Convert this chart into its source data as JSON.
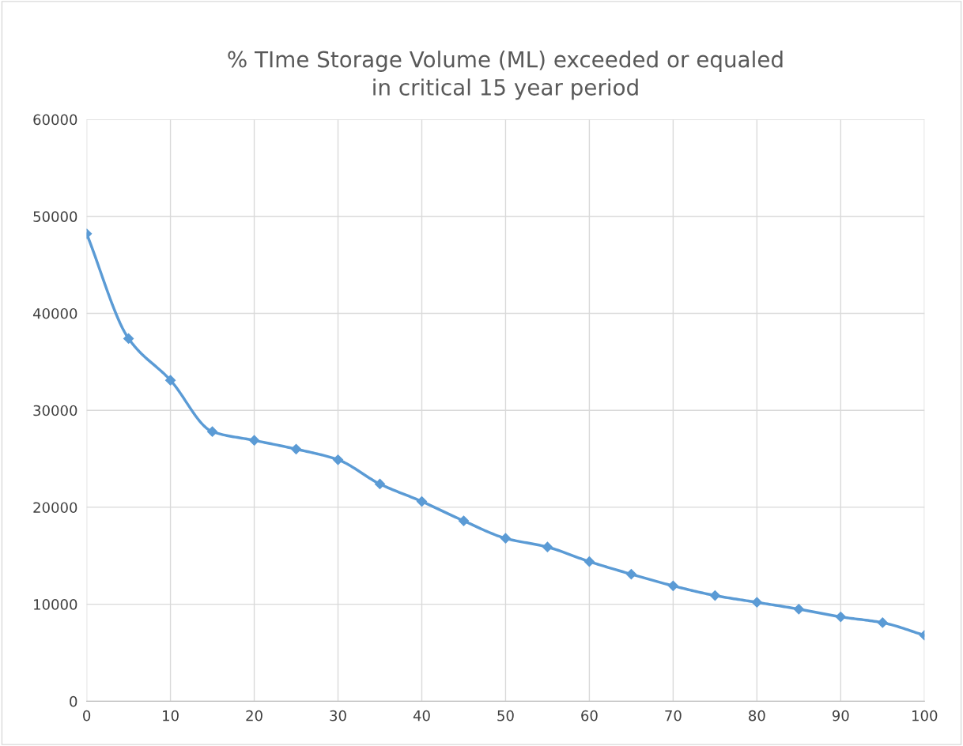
{
  "chart_data": {
    "type": "line",
    "title": "% TIme Storage Volume (ML) exceeded or equaled\nin critical 15 year period",
    "x": [
      0,
      5,
      10,
      15,
      20,
      25,
      30,
      35,
      40,
      45,
      50,
      55,
      60,
      65,
      70,
      75,
      80,
      85,
      90,
      95,
      100
    ],
    "series": [
      {
        "color": "#5b9bd5",
        "values": [
          48200,
          37400,
          33100,
          27800,
          26900,
          26000,
          24900,
          22400,
          20600,
          18600,
          16800,
          15900,
          14400,
          13100,
          11900,
          10900,
          10200,
          9500,
          8700,
          8100,
          6800
        ]
      }
    ],
    "xlim": [
      0,
      100
    ],
    "xticks": [
      0,
      10,
      20,
      30,
      40,
      50,
      60,
      70,
      80,
      90,
      100
    ],
    "ylim": [
      0,
      60000
    ],
    "yticks": [
      0,
      10000,
      20000,
      30000,
      40000,
      50000,
      60000
    ],
    "grid": true,
    "marker": "diamond",
    "line_style": "solid",
    "legend": false
  }
}
